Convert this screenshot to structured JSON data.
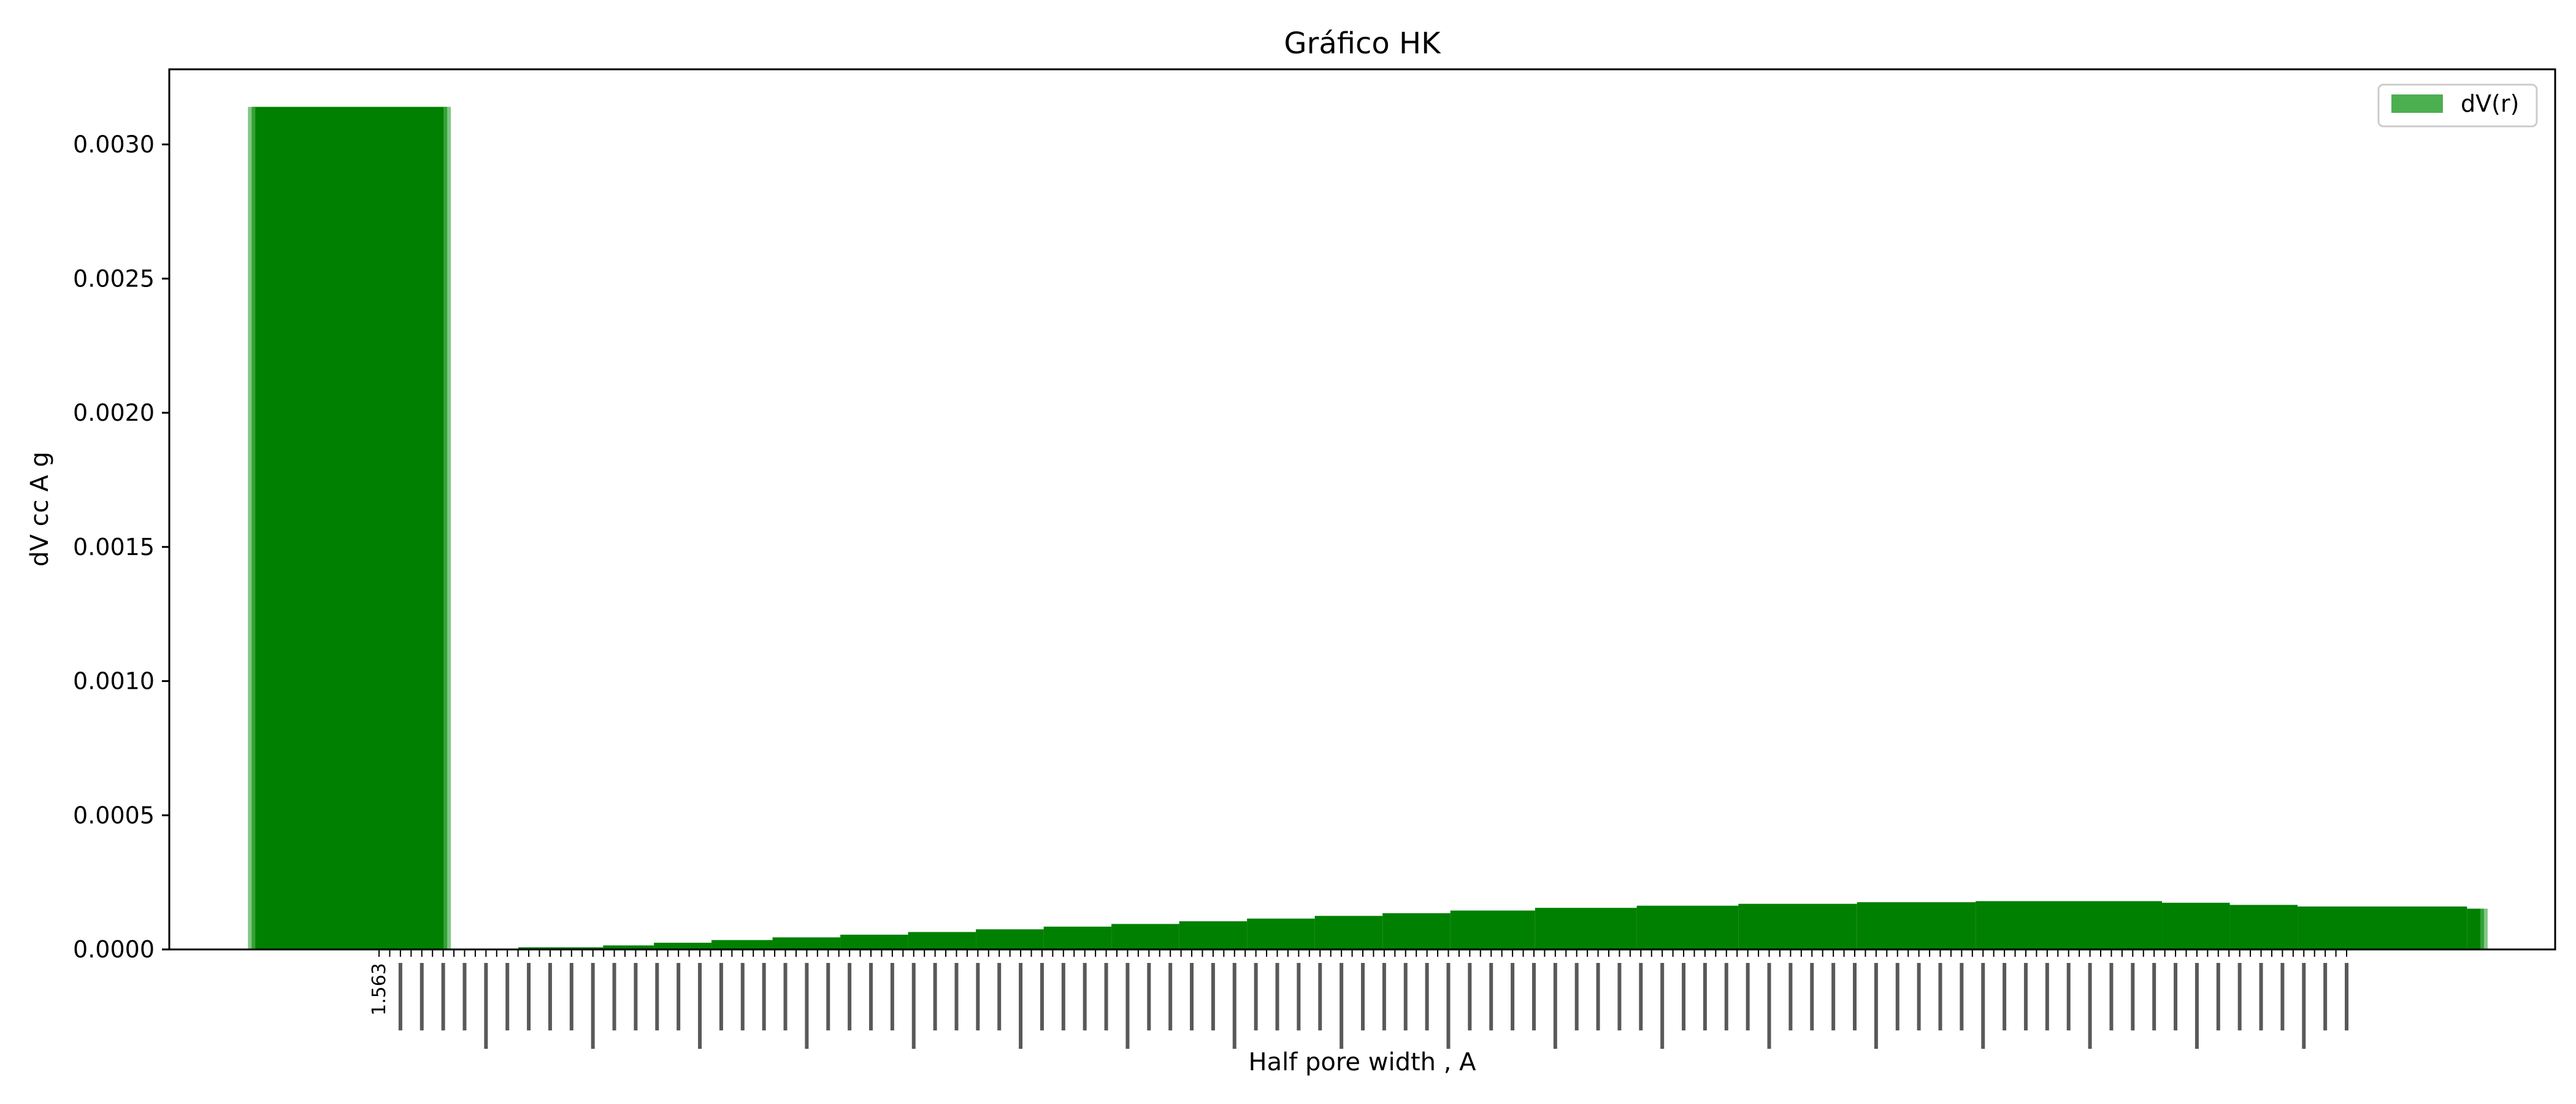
{
  "chart_data": {
    "type": "bar",
    "title": "Gráfico HK",
    "xlabel": "Half pore width , A",
    "ylabel": "dV cc A g",
    "ylim": [
      0,
      0.00328
    ],
    "yticks": [
      "0.0000",
      "0.0005",
      "0.0010",
      "0.0015",
      "0.0020",
      "0.0025",
      "0.0030"
    ],
    "ytick_values": [
      0,
      0.0005,
      0.001,
      0.0015,
      0.002,
      0.0025,
      0.003
    ],
    "first_xtick_label": "1.563",
    "series": [
      {
        "name": "dV(r)",
        "color": "#008000",
        "legend_color": "#4caf50",
        "segments": [
          {
            "x_start": 1.563,
            "x_end": 2.14,
            "value": 0.00314
          },
          {
            "x_start": 2.14,
            "x_end": 2.35,
            "value": 0.0
          },
          {
            "x_start": 2.35,
            "x_end": 2.6,
            "value": 8e-06
          },
          {
            "x_start": 2.6,
            "x_end": 2.75,
            "value": 1.5e-05
          },
          {
            "x_start": 2.75,
            "x_end": 2.92,
            "value": 2.5e-05
          },
          {
            "x_start": 2.92,
            "x_end": 3.1,
            "value": 3.5e-05
          },
          {
            "x_start": 3.1,
            "x_end": 3.3,
            "value": 4.5e-05
          },
          {
            "x_start": 3.3,
            "x_end": 3.5,
            "value": 5.5e-05
          },
          {
            "x_start": 3.5,
            "x_end": 3.7,
            "value": 6.5e-05
          },
          {
            "x_start": 3.7,
            "x_end": 3.9,
            "value": 7.5e-05
          },
          {
            "x_start": 3.9,
            "x_end": 4.1,
            "value": 8.5e-05
          },
          {
            "x_start": 4.1,
            "x_end": 4.3,
            "value": 9.5e-05
          },
          {
            "x_start": 4.3,
            "x_end": 4.5,
            "value": 0.000105
          },
          {
            "x_start": 4.5,
            "x_end": 4.7,
            "value": 0.000115
          },
          {
            "x_start": 4.7,
            "x_end": 4.9,
            "value": 0.000125
          },
          {
            "x_start": 4.9,
            "x_end": 5.1,
            "value": 0.000135
          },
          {
            "x_start": 5.1,
            "x_end": 5.35,
            "value": 0.000145
          },
          {
            "x_start": 5.35,
            "x_end": 5.65,
            "value": 0.000155
          },
          {
            "x_start": 5.65,
            "x_end": 5.95,
            "value": 0.000163
          },
          {
            "x_start": 5.95,
            "x_end": 6.3,
            "value": 0.00017
          },
          {
            "x_start": 6.3,
            "x_end": 6.65,
            "value": 0.000176
          },
          {
            "x_start": 6.65,
            "x_end": 7.2,
            "value": 0.00018
          },
          {
            "x_start": 7.2,
            "x_end": 7.4,
            "value": 0.000174
          },
          {
            "x_start": 7.4,
            "x_end": 7.6,
            "value": 0.000166
          },
          {
            "x_start": 7.6,
            "x_end": 8.1,
            "value": 0.00016
          },
          {
            "x_start": 8.1,
            "x_end": 8.15,
            "value": 0.000152
          }
        ]
      }
    ],
    "xlim": [
      1.32,
      8.36
    ],
    "legend_position": "top-right",
    "grid": false
  }
}
